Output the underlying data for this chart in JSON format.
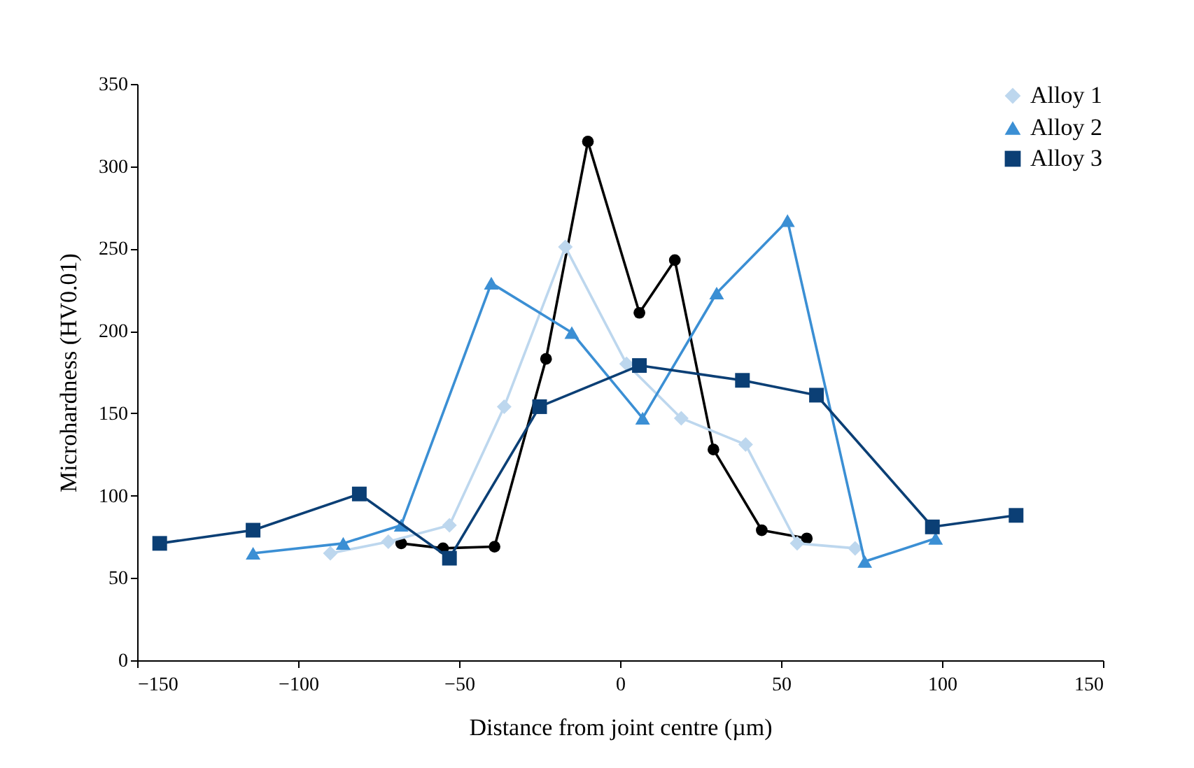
{
  "chart_data": {
    "type": "line",
    "xlabel": "Distance from joint centre (µm)",
    "ylabel": "Microhardness (HV0.01)",
    "xlim": [
      -150,
      150
    ],
    "xticks": [
      -150,
      -100,
      -50,
      0,
      50,
      100,
      150
    ],
    "ylim": [
      0,
      350
    ],
    "yticks": [
      0,
      50,
      100,
      150,
      200,
      250,
      300,
      350
    ],
    "grid": false,
    "legend": "top right",
    "series": [
      {
        "color": "#000000",
        "marker": "circle",
        "x": [
          -68,
          -55,
          -39,
          -23,
          -10,
          6,
          17,
          29,
          44,
          58
        ],
        "values": [
          71,
          68,
          69,
          183,
          315,
          211,
          243,
          128,
          79,
          74
        ]
      },
      {
        "name": "Alloy 1",
        "color": "#bdd7ee",
        "marker": "diamond",
        "x": [
          -90,
          -72,
          -53,
          -36,
          -17,
          2,
          19,
          39,
          55,
          73
        ],
        "values": [
          65,
          72,
          82,
          154,
          251,
          180,
          147,
          131,
          71,
          68
        ]
      },
      {
        "name": "Alloy 2",
        "color": "#3b8fd4",
        "marker": "triangle",
        "x": [
          -114,
          -86,
          -68,
          -40,
          -15,
          7,
          30,
          52,
          76,
          98
        ],
        "values": [
          65,
          71,
          82,
          229,
          199,
          147,
          223,
          267,
          60,
          74
        ]
      },
      {
        "name": "Alloy 3",
        "color": "#0b3f75",
        "marker": "square",
        "x": [
          -143,
          -114,
          -81,
          -53,
          -25,
          6,
          38,
          61,
          97,
          123
        ],
        "values": [
          71,
          79,
          101,
          62,
          154,
          179,
          170,
          161,
          81,
          88
        ]
      }
    ]
  }
}
